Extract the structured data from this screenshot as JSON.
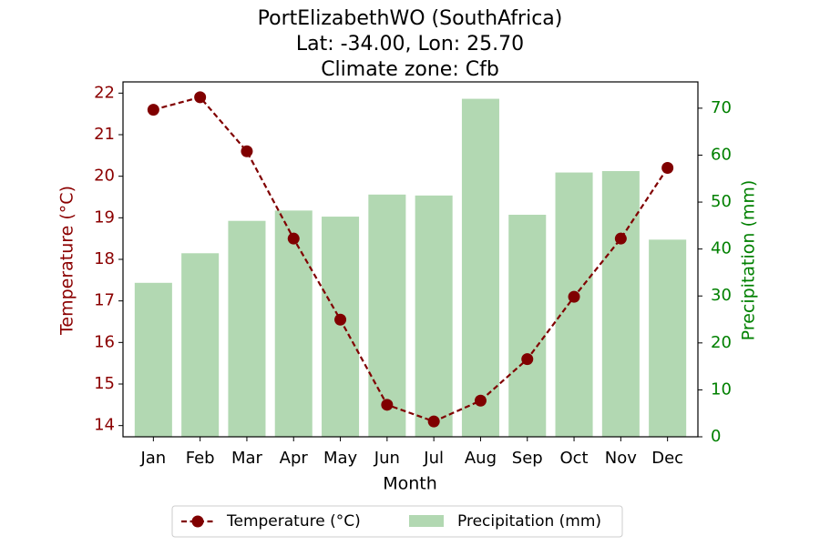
{
  "chart_data": {
    "type": "bar+line",
    "title_lines": [
      "PortElizabethWO (SouthAfrica)",
      "Lat: -34.00, Lon: 25.70",
      "Climate zone: Cfb"
    ],
    "xlabel": "Month",
    "ylabel_left": "Temperature (°C)",
    "ylabel_right": "Precipitation (mm)",
    "categories": [
      "Jan",
      "Feb",
      "Mar",
      "Apr",
      "May",
      "Jun",
      "Jul",
      "Aug",
      "Sep",
      "Oct",
      "Nov",
      "Dec"
    ],
    "series": [
      {
        "name": "Temperature (°C)",
        "type": "line",
        "axis": "left",
        "color": "#800000",
        "values": [
          21.6,
          21.9,
          20.6,
          18.5,
          16.55,
          14.5,
          14.1,
          14.6,
          15.6,
          17.1,
          18.5,
          20.2
        ]
      },
      {
        "name": "Precipitation (mm)",
        "type": "bar",
        "axis": "right",
        "color": "#b2d8b2",
        "values": [
          32.8,
          39.1,
          46.0,
          48.2,
          46.9,
          51.6,
          51.4,
          72.0,
          47.3,
          56.3,
          56.6,
          42.0
        ]
      }
    ],
    "ylim_left": [
      13.73,
      22.27
    ],
    "ylim_right": [
      0,
      75.6
    ],
    "yticks_left": [
      "14",
      "15",
      "16",
      "17",
      "18",
      "19",
      "20",
      "21",
      "22"
    ],
    "yticks_right": [
      "0",
      "10",
      "20",
      "30",
      "40",
      "50",
      "60",
      "70"
    ],
    "left_axis_color": "#8b0000",
    "right_axis_color": "#008000",
    "grid": false,
    "legend_placement": "bottom-center"
  }
}
